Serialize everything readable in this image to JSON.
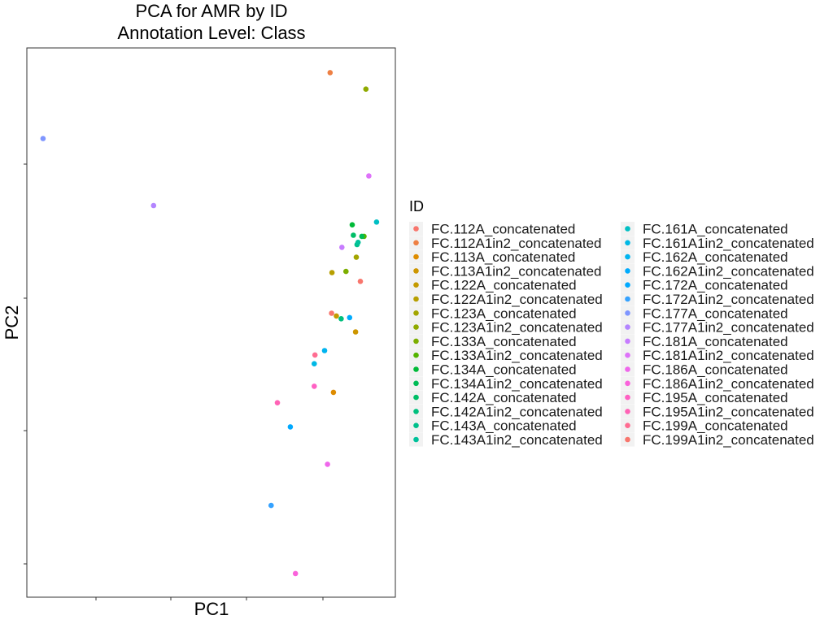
{
  "chart_data": {
    "type": "scatter",
    "title": "PCA for AMR by ID",
    "subtitle": "Annotation Level: Class",
    "xlabel": "PC1",
    "ylabel": "PC2",
    "xlim": [
      0,
      100
    ],
    "ylim": [
      0,
      100
    ],
    "grid": false,
    "legend": {
      "title": "ID",
      "placement": "right",
      "columns": 2
    },
    "series": [
      {
        "name": "FC.112A_concatenated",
        "color": "#F8766D",
        "points": [
          [
            90.5,
            57.5
          ]
        ]
      },
      {
        "name": "FC.112A1in2_concatenated",
        "color": "#EE8044",
        "points": [
          [
            82.3,
            95.5
          ]
        ]
      },
      {
        "name": "FC.113A_concatenated",
        "color": "#DE8C00",
        "points": [
          [
            83.2,
            37.3
          ]
        ]
      },
      {
        "name": "FC.113A1in2_concatenated",
        "color": "#CD9600",
        "points": [
          [
            89.2,
            48.3
          ]
        ]
      },
      {
        "name": "FC.122A_concatenated",
        "color": "#C49A00",
        "points": [
          [
            84.0,
            51.2
          ]
        ]
      },
      {
        "name": "FC.122A1in2_concatenated",
        "color": "#B79F00",
        "points": [
          [
            82.8,
            59.1
          ]
        ]
      },
      {
        "name": "FC.123A_concatenated",
        "color": "#A3A500",
        "points": [
          [
            89.4,
            61.9
          ]
        ]
      },
      {
        "name": "FC.123A1in2_concatenated",
        "color": "#8FAA00",
        "points": [
          [
            92.0,
            92.5
          ]
        ]
      },
      {
        "name": "FC.133A_concatenated",
        "color": "#7CAE00",
        "points": [
          [
            86.6,
            59.3
          ]
        ]
      },
      {
        "name": "FC.133A1in2_concatenated",
        "color": "#53B400",
        "points": [
          [
            91.5,
            65.7
          ]
        ]
      },
      {
        "name": "FC.134A_concatenated",
        "color": "#00BA38",
        "points": [
          [
            88.3,
            67.8
          ]
        ]
      },
      {
        "name": "FC.134A1in2_concatenated",
        "color": "#00BC56",
        "points": [
          [
            90.9,
            65.7
          ]
        ]
      },
      {
        "name": "FC.142A_concatenated",
        "color": "#00BE67",
        "points": [
          [
            88.6,
            65.9
          ]
        ]
      },
      {
        "name": "FC.142A1in2_concatenated",
        "color": "#00BF7D",
        "points": [
          [
            85.3,
            50.7
          ]
        ]
      },
      {
        "name": "FC.143A_concatenated",
        "color": "#00C08B",
        "points": [
          [
            89.6,
            64.2
          ]
        ]
      },
      {
        "name": "FC.143A1in2_concatenated",
        "color": "#00C19A",
        "points": [
          [
            89.9,
            64.6
          ]
        ]
      },
      {
        "name": "FC.161A_concatenated",
        "color": "#00BFC4",
        "points": [
          [
            94.9,
            68.3
          ]
        ]
      },
      {
        "name": "FC.161A1in2_concatenated",
        "color": "#00B8E5",
        "points": [
          [
            78.0,
            42.5
          ]
        ]
      },
      {
        "name": "FC.162A_concatenated",
        "color": "#00B4F0",
        "points": [
          [
            80.8,
            44.9
          ]
        ]
      },
      {
        "name": "FC.162A1in2_concatenated",
        "color": "#00ABFD",
        "points": [
          [
            87.6,
            50.9
          ]
        ]
      },
      {
        "name": "FC.172A_concatenated",
        "color": "#00A9FF",
        "points": [
          [
            71.5,
            31.0
          ]
        ]
      },
      {
        "name": "FC.172A1in2_concatenated",
        "color": "#35A2FF",
        "points": [
          [
            66.3,
            16.7
          ]
        ]
      },
      {
        "name": "FC.177A_concatenated",
        "color": "#7F96FF",
        "points": [
          [
            4.4,
            83.5
          ]
        ]
      },
      {
        "name": "FC.177A1in2_concatenated",
        "color": "#B385FF",
        "points": [
          [
            34.4,
            71.3
          ]
        ]
      },
      {
        "name": "FC.181A_concatenated",
        "color": "#C77CFF",
        "points": [
          [
            85.5,
            63.7
          ]
        ]
      },
      {
        "name": "FC.181A1in2_concatenated",
        "color": "#DE72F9",
        "points": [
          [
            92.8,
            76.7
          ]
        ]
      },
      {
        "name": "FC.186A_concatenated",
        "color": "#EF67EB",
        "points": [
          [
            81.6,
            24.2
          ]
        ]
      },
      {
        "name": "FC.186A1in2_concatenated",
        "color": "#FA62DB",
        "points": [
          [
            72.9,
            4.3
          ]
        ]
      },
      {
        "name": "FC.195A_concatenated",
        "color": "#FF61C3",
        "points": [
          [
            78.0,
            38.4
          ]
        ]
      },
      {
        "name": "FC.195A1in2_concatenated",
        "color": "#FF63B6",
        "points": [
          [
            68.0,
            35.4
          ]
        ]
      },
      {
        "name": "FC.199A_concatenated",
        "color": "#FF6C91",
        "points": [
          [
            78.2,
            44.1
          ]
        ]
      },
      {
        "name": "FC.199A1in2_concatenated",
        "color": "#F8766D",
        "points": [
          [
            82.7,
            51.7
          ]
        ]
      }
    ]
  }
}
